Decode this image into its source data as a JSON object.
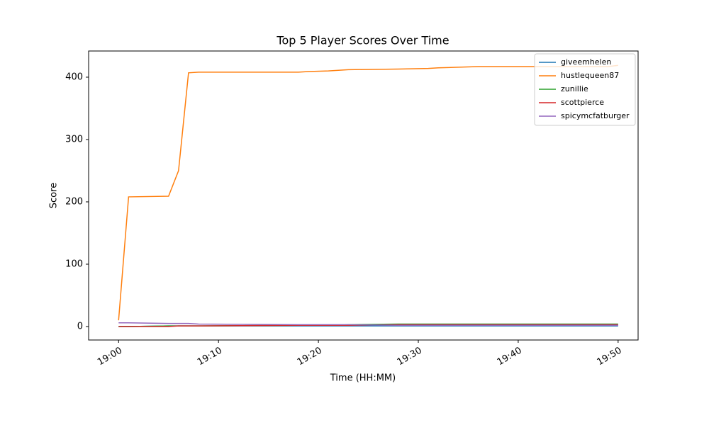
{
  "chart_data": {
    "type": "line",
    "title": "Top 5 Player Scores Over Time",
    "x_label": "Time (HH:MM)",
    "y_label": "Score",
    "x": [
      "19:00",
      "19:01",
      "19:05",
      "19:06",
      "19:07",
      "19:08",
      "19:18",
      "19:19",
      "19:21",
      "19:22",
      "19:23",
      "19:28",
      "19:31",
      "19:32",
      "19:36",
      "19:49",
      "19:50"
    ],
    "series": [
      {
        "name": "giveemhelen",
        "color": "#1f77b4",
        "values": [
          0,
          0,
          1,
          1,
          1,
          1,
          1,
          1,
          1,
          1,
          1,
          1,
          1,
          1,
          1,
          1,
          1
        ]
      },
      {
        "name": "hustlequeen87",
        "color": "#ff7f0e",
        "values": [
          10,
          208,
          209,
          250,
          407,
          408,
          408,
          409,
          410,
          411,
          412,
          413,
          414,
          415,
          417,
          417,
          419
        ]
      },
      {
        "name": "zunillie",
        "color": "#2ca02c",
        "values": [
          0,
          0,
          1,
          1,
          1,
          1,
          2,
          2,
          2,
          2,
          3,
          4,
          4,
          4,
          4,
          4,
          4
        ]
      },
      {
        "name": "scottpierce",
        "color": "#d62728",
        "values": [
          0,
          0,
          0,
          1,
          1,
          1,
          2,
          2,
          2,
          2,
          2,
          3,
          3,
          3,
          3,
          3,
          3
        ]
      },
      {
        "name": "spicymcfatburger",
        "color": "#9467bd",
        "values": [
          6,
          6,
          5,
          5,
          5,
          4,
          3,
          3,
          3,
          3,
          3,
          2,
          2,
          2,
          2,
          2,
          2
        ]
      }
    ],
    "xlim": [
      "18:57",
      "19:52"
    ],
    "xticks": [
      "19:00",
      "19:10",
      "19:20",
      "19:30",
      "19:40",
      "19:50"
    ],
    "ylim": [
      -21.6,
      442
    ],
    "yticks": [
      0,
      100,
      200,
      300,
      400
    ],
    "legend": "upper right"
  }
}
